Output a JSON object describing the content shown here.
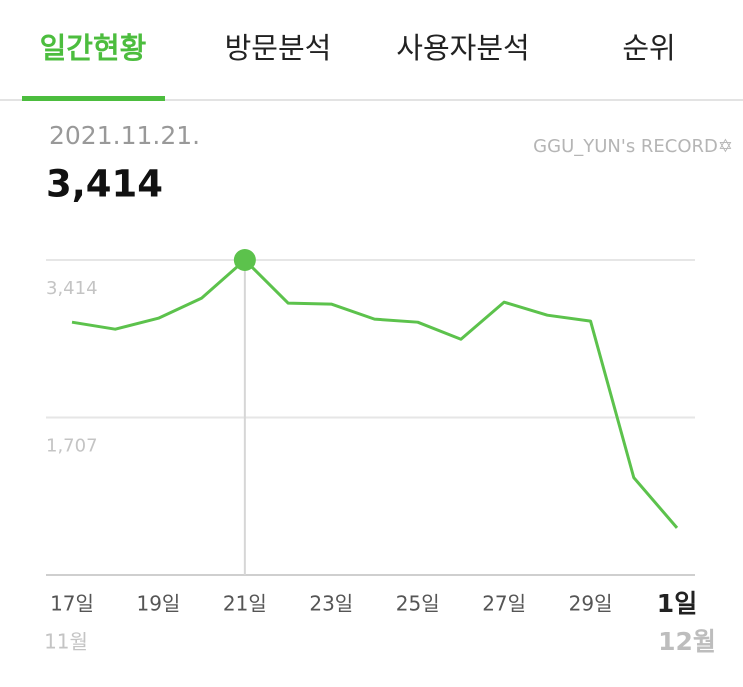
{
  "tabs": [
    "일간현황",
    "방문분석",
    "사용자분석",
    "순위"
  ],
  "active_tab": "일간현황",
  "selected": {
    "date": "2021.11.21.",
    "value": "3,414"
  },
  "watermark": "GGU_YUN's RECORD✡",
  "chart_data": {
    "type": "line",
    "categories": [
      "17일",
      null,
      "19일",
      null,
      "21일",
      null,
      "23일",
      null,
      "25일",
      null,
      "27일",
      null,
      "29일",
      null,
      "1일"
    ],
    "months": [
      "11월",
      null,
      null,
      null,
      null,
      null,
      null,
      null,
      null,
      null,
      null,
      null,
      null,
      null,
      "12월"
    ],
    "series": [
      {
        "color": "#5cc24c",
        "values": [
          2740,
          2664,
          2783,
          3001,
          3414,
          2947,
          2936,
          2773,
          2740,
          2555,
          2957,
          2816,
          2751,
          1055,
          511
        ]
      }
    ],
    "highlight_category": "21일",
    "ylim": [
      0,
      3414
    ],
    "yticks": [
      {
        "value": 1707,
        "label": "1,707"
      },
      {
        "value": 3414,
        "label": "3,414"
      }
    ],
    "grid": true
  }
}
